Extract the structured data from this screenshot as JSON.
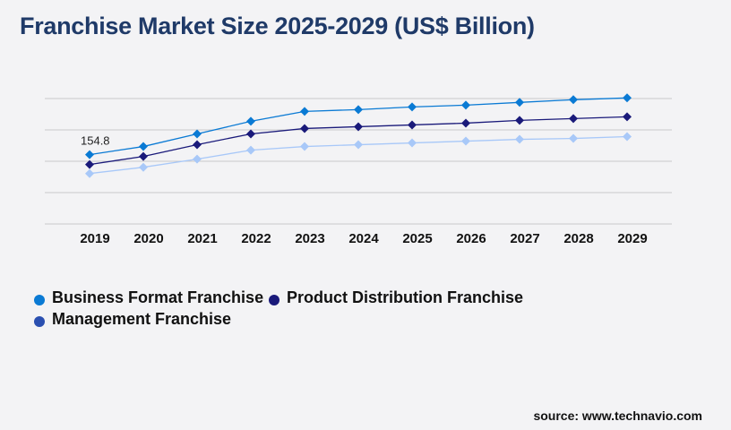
{
  "chart_data": {
    "type": "line",
    "title": "Franchise Market Size 2025-2029 (US$ Billion)",
    "categories": [
      "2019",
      "2020",
      "2021",
      "2022",
      "2023",
      "2024",
      "2025",
      "2026",
      "2027",
      "2028",
      "2029"
    ],
    "ylim": [
      0,
      280
    ],
    "grid": true,
    "legend_placement": "bottom-left",
    "series": [
      {
        "name": "Business Format Franchise",
        "color": "#0a7ad4",
        "legend_color": "#0a7ad4",
        "values": [
          154.8,
          172.9,
          201.0,
          229.2,
          251.3,
          255.3,
          261.3,
          265.3,
          271.4,
          277.4,
          281.4
        ]
      },
      {
        "name": "Product Distribution Franchise",
        "color": "#1a1a7a",
        "legend_color": "#1a1a7a",
        "values": [
          132.7,
          150.8,
          176.9,
          201.0,
          213.1,
          217.1,
          221.1,
          225.1,
          231.2,
          235.2,
          239.2
        ]
      },
      {
        "name": "Management Franchise",
        "color": "#a8c8f8",
        "legend_color": "#2a4fb0",
        "values": [
          112.6,
          126.6,
          144.7,
          164.8,
          172.9,
          176.9,
          180.9,
          184.9,
          188.9,
          190.9,
          195.0
        ]
      }
    ],
    "annotations": [
      {
        "category": "2019",
        "series": "Business Format Franchise",
        "text": "154.8"
      }
    ]
  },
  "source": "source: www.technavio.com"
}
